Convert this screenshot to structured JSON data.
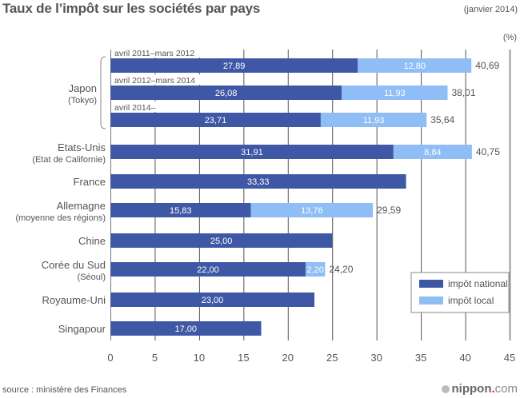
{
  "header": {
    "title": "Taux de l’impôt sur les sociétés par pays",
    "date": "(janvier 2014)",
    "unit": "(%)"
  },
  "footer": {
    "source": "source : ministère des Finances",
    "brand_main": "nippon",
    "brand_dot": ".",
    "brand_tld": "com"
  },
  "colors": {
    "national": "#3f58a6",
    "local": "#8fbdf5",
    "grid": "#555555"
  },
  "chart_data": {
    "type": "bar",
    "orientation": "horizontal",
    "stacked": true,
    "title": "Taux de l’impôt sur les sociétés par pays",
    "subtitle": "(janvier 2014)",
    "xlabel": "(%)",
    "ylabel": "",
    "xlim": [
      0,
      45
    ],
    "xticks": [
      "0",
      "5",
      "10",
      "15",
      "20",
      "25",
      "30",
      "35",
      "40",
      "45"
    ],
    "grid": true,
    "legend": {
      "position": "bottom-right",
      "entries": [
        "impôt national",
        "impôt local"
      ]
    },
    "groups": [
      {
        "label": "Japon",
        "sublabel": "(Tokyo)",
        "bracket": true,
        "rows": [
          0,
          1,
          2
        ]
      },
      {
        "label": "Etats-Unis",
        "sublabel": "(Etat de Californie)",
        "rows": [
          3
        ]
      },
      {
        "label": "France",
        "sublabel": "",
        "rows": [
          4
        ]
      },
      {
        "label": "Allemagne",
        "sublabel": "(moyenne des régions)",
        "rows": [
          5
        ]
      },
      {
        "label": "Chine",
        "sublabel": "",
        "rows": [
          6
        ]
      },
      {
        "label": "Corée du Sud",
        "sublabel": "(Séoul)",
        "rows": [
          7
        ]
      },
      {
        "label": "Royaume-Uni",
        "sublabel": "",
        "rows": [
          8
        ]
      },
      {
        "label": "Singapour",
        "sublabel": "",
        "rows": [
          9
        ]
      }
    ],
    "rows": [
      {
        "period": "avril 2011–mars 2012",
        "national": 27.89,
        "national_label": "27,89",
        "local": 12.8,
        "local_label": "12,80",
        "total_label": "40,69"
      },
      {
        "period": "avril 2012–mars 2014",
        "national": 26.08,
        "national_label": "26,08",
        "local": 11.93,
        "local_label": "11,93",
        "total_label": "38,01"
      },
      {
        "period": "avril 2014–",
        "national": 23.71,
        "national_label": "23,71",
        "local": 11.93,
        "local_label": "11,93",
        "total_label": "35,64"
      },
      {
        "period": "",
        "national": 31.91,
        "national_label": "31,91",
        "local": 8.84,
        "local_label": "8,84",
        "total_label": "40,75"
      },
      {
        "period": "",
        "national": 33.33,
        "national_label": "33,33",
        "local": 0,
        "local_label": "",
        "total_label": ""
      },
      {
        "period": "",
        "national": 15.83,
        "national_label": "15,83",
        "local": 13.76,
        "local_label": "13,76",
        "total_label": "29,59"
      },
      {
        "period": "",
        "national": 25.0,
        "national_label": "25,00",
        "local": 0,
        "local_label": "",
        "total_label": ""
      },
      {
        "period": "",
        "national": 22.0,
        "national_label": "22,00",
        "local": 2.2,
        "local_label": "2,20",
        "total_label": "24,20"
      },
      {
        "period": "",
        "national": 23.0,
        "national_label": "23,00",
        "local": 0,
        "local_label": "",
        "total_label": ""
      },
      {
        "period": "",
        "national": 17.0,
        "national_label": "17,00",
        "local": 0,
        "local_label": "",
        "total_label": ""
      }
    ]
  }
}
